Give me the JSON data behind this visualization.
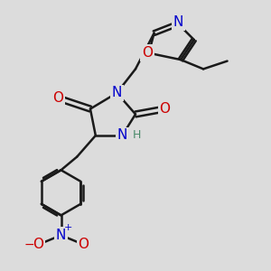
{
  "bg_color": "#dcdcdc",
  "bond_color": "#1a1a1a",
  "bond_width": 1.8,
  "atom_colors": {
    "N": "#0000cc",
    "O": "#cc0000",
    "H": "#4a8a6a"
  },
  "font_size_atom": 11,
  "font_size_h": 9
}
